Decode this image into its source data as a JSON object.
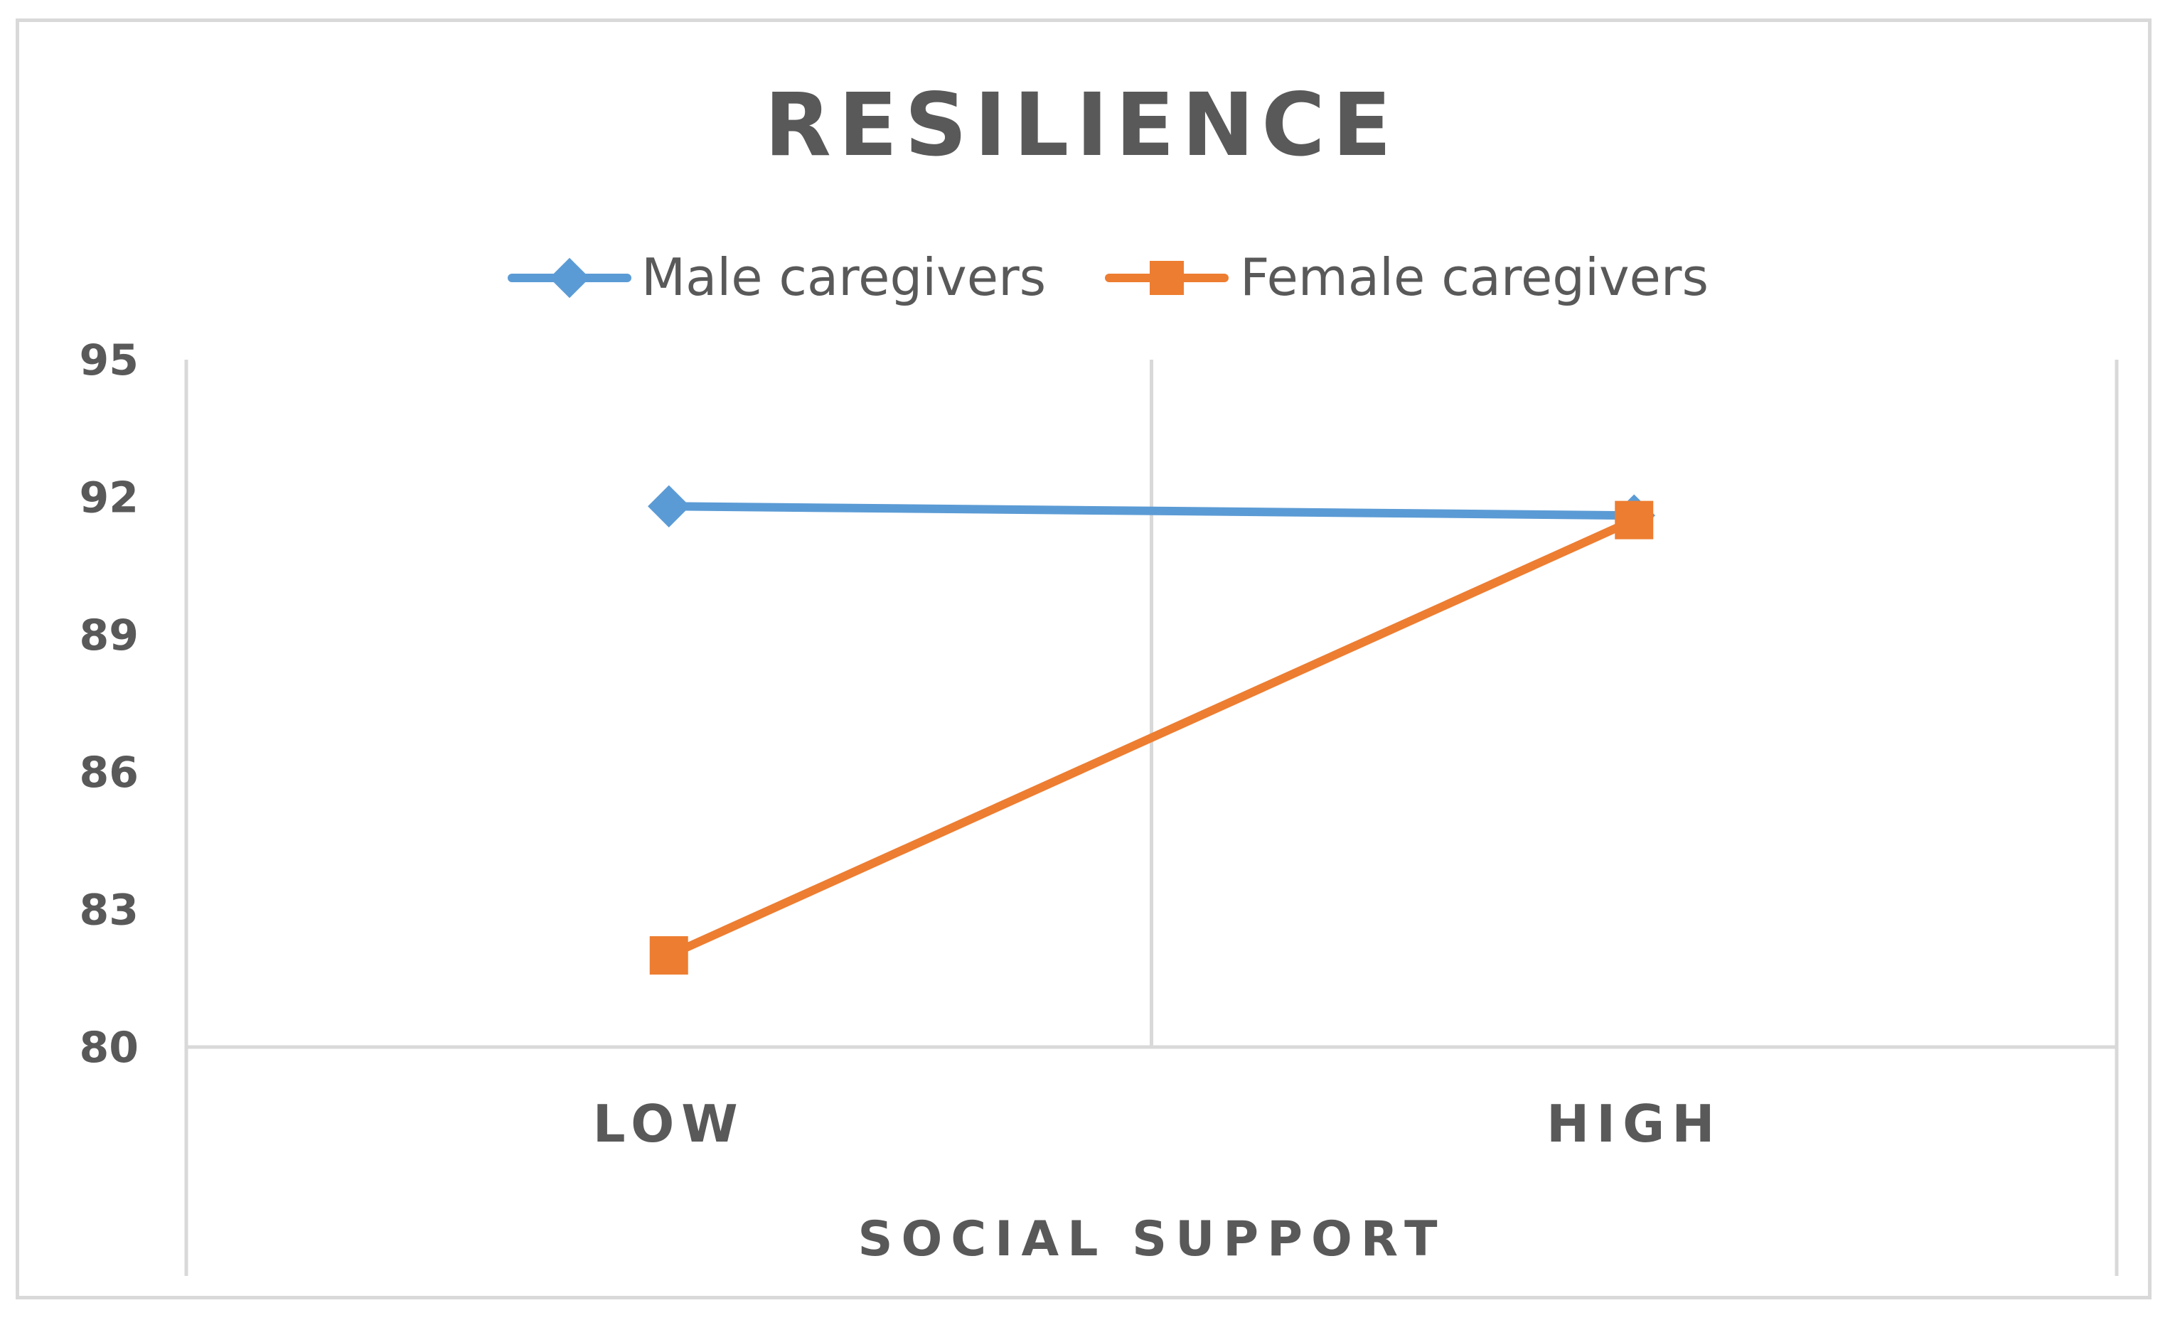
{
  "chart_data": {
    "type": "line",
    "title": "RESILIENCE",
    "xlabel": "SOCIAL SUPPORT",
    "ylabel": "",
    "categories": [
      "LOW",
      "HIGH"
    ],
    "ylim": [
      80,
      95
    ],
    "yticks": [
      95,
      92,
      89,
      86,
      83,
      80
    ],
    "legend_position": "top",
    "grid": "vertical category separators",
    "series": [
      {
        "name": "Male caregivers",
        "values": [
          91.8,
          91.6
        ],
        "color": "#5b9bd5",
        "marker": "diamond"
      },
      {
        "name": "Female caregivers",
        "values": [
          82.0,
          91.5
        ],
        "color": "#ed7d31",
        "marker": "square"
      }
    ]
  },
  "colors": {
    "text": "#595959",
    "grid": "#d9d9d9",
    "frame": "#d9d9d9"
  }
}
